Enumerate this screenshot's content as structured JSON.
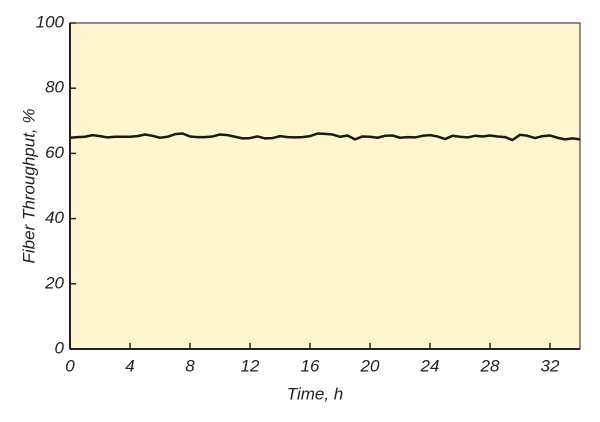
{
  "chart_data": {
    "type": "line",
    "x_label": "Time, h",
    "y_label": "Fiber Throughput, %",
    "x": [
      0,
      0.5,
      1,
      1.5,
      2,
      2.5,
      3,
      3.5,
      4,
      4.5,
      5,
      5.5,
      6,
      6.5,
      7,
      7.5,
      8,
      8.5,
      9,
      9.5,
      10,
      10.5,
      11,
      11.5,
      12,
      12.5,
      13,
      13.5,
      14,
      14.5,
      15,
      15.5,
      16,
      16.5,
      17,
      17.5,
      18,
      18.5,
      19,
      19.5,
      20,
      20.5,
      21,
      21.5,
      22,
      22.5,
      23,
      23.5,
      24,
      24.5,
      25,
      25.5,
      26,
      26.5,
      27,
      27.5,
      28,
      28.5,
      29,
      29.5,
      30,
      30.5,
      31,
      31.5,
      32,
      32.5,
      33,
      33.5,
      34
    ],
    "series": [
      {
        "color": "#1a1a1a",
        "values": [
          64.8,
          65,
          65.1,
          65.6,
          65.3,
          64.9,
          65.1,
          65.1,
          65.1,
          65.3,
          65.8,
          65.4,
          64.8,
          65.1,
          65.9,
          66.1,
          65.2,
          65,
          65,
          65.2,
          65.8,
          65.6,
          65.1,
          64.6,
          64.7,
          65.2,
          64.6,
          64.7,
          65.3,
          65,
          64.9,
          65,
          65.3,
          66.1,
          66,
          65.8,
          65.1,
          65.5,
          64.3,
          65.2,
          65.1,
          64.8,
          65.4,
          65.5,
          64.8,
          65,
          64.9,
          65.4,
          65.6,
          65.2,
          64.4,
          65.4,
          65.1,
          64.9,
          65.4,
          65.2,
          65.5,
          65.2,
          65,
          64.1,
          65.7,
          65.4,
          64.7,
          65.3,
          65.5,
          64.8,
          64.3,
          64.6,
          64.3
        ]
      }
    ],
    "xlim": [
      0,
      34
    ],
    "xticks": [
      0,
      4,
      8,
      12,
      16,
      20,
      24,
      28,
      32
    ],
    "ylim": [
      0,
      100
    ],
    "yticks": [
      0,
      20,
      40,
      60,
      80,
      100
    ],
    "background": "#fff6d0"
  }
}
